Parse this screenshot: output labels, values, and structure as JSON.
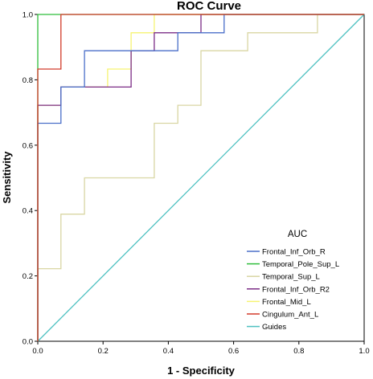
{
  "chart_data": {
    "type": "line",
    "title": "ROC Curve",
    "xlabel": "1 - Specificity",
    "ylabel": "Sensitivity",
    "xlim": [
      0,
      1
    ],
    "ylim": [
      0,
      1
    ],
    "x_ticks": [
      "0.0",
      "0.2",
      "0.4",
      "0.6",
      "0.8",
      "1.0"
    ],
    "y_ticks": [
      "0.0",
      "0.2",
      "0.4",
      "0.6",
      "0.8",
      "1.0"
    ],
    "legend": {
      "title": "AUC",
      "placement": "bottom-right"
    },
    "series": [
      {
        "name": "Frontal_Inf_Orb_R",
        "color": "#4a6fc9",
        "points": [
          [
            0,
            0
          ],
          [
            0,
            0.667
          ],
          [
            0.071,
            0.667
          ],
          [
            0.071,
            0.778
          ],
          [
            0.143,
            0.778
          ],
          [
            0.143,
            0.889
          ],
          [
            0.429,
            0.889
          ],
          [
            0.429,
            0.944
          ],
          [
            0.571,
            0.944
          ],
          [
            0.571,
            1
          ],
          [
            1,
            1
          ]
        ]
      },
      {
        "name": "Temporal_Pole_Sup_L",
        "color": "#2ebd3a",
        "points": [
          [
            0,
            0
          ],
          [
            0,
            1
          ],
          [
            1,
            1
          ]
        ]
      },
      {
        "name": "Temporal_Sup_L",
        "color": "#d9d6a3",
        "points": [
          [
            0,
            0
          ],
          [
            0,
            0.222
          ],
          [
            0.071,
            0.222
          ],
          [
            0.071,
            0.389
          ],
          [
            0.143,
            0.389
          ],
          [
            0.143,
            0.5
          ],
          [
            0.357,
            0.5
          ],
          [
            0.357,
            0.667
          ],
          [
            0.429,
            0.667
          ],
          [
            0.429,
            0.722
          ],
          [
            0.5,
            0.722
          ],
          [
            0.5,
            0.889
          ],
          [
            0.643,
            0.889
          ],
          [
            0.643,
            0.944
          ],
          [
            0.857,
            0.944
          ],
          [
            0.857,
            1
          ],
          [
            1,
            1
          ]
        ]
      },
      {
        "name": "Frontal_Inf_Orb_R2",
        "color": "#7b2c86",
        "points": [
          [
            0,
            0
          ],
          [
            0,
            0.722
          ],
          [
            0.071,
            0.722
          ],
          [
            0.071,
            0.778
          ],
          [
            0.214,
            0.778
          ],
          [
            0.286,
            0.778
          ],
          [
            0.286,
            0.889
          ],
          [
            0.357,
            0.889
          ],
          [
            0.357,
            0.944
          ],
          [
            0.5,
            0.944
          ],
          [
            0.5,
            1
          ],
          [
            1,
            1
          ]
        ]
      },
      {
        "name": "Frontal_Mid_L",
        "color": "#f6f472",
        "points": [
          [
            0,
            0
          ],
          [
            0,
            0.722
          ],
          [
            0.071,
            0.722
          ],
          [
            0.071,
            0.778
          ],
          [
            0.214,
            0.778
          ],
          [
            0.214,
            0.833
          ],
          [
            0.286,
            0.833
          ],
          [
            0.286,
            0.944
          ],
          [
            0.357,
            0.944
          ],
          [
            0.357,
            1
          ],
          [
            1,
            1
          ]
        ]
      },
      {
        "name": "Cingulum_Ant_L",
        "color": "#d23a2a",
        "points": [
          [
            0,
            0
          ],
          [
            0,
            0.833
          ],
          [
            0.071,
            0.833
          ],
          [
            0.071,
            1
          ],
          [
            1,
            1
          ]
        ]
      },
      {
        "name": "Guides",
        "color": "#4ec1c1",
        "points": [
          [
            0,
            0
          ],
          [
            1,
            1
          ]
        ]
      }
    ]
  }
}
